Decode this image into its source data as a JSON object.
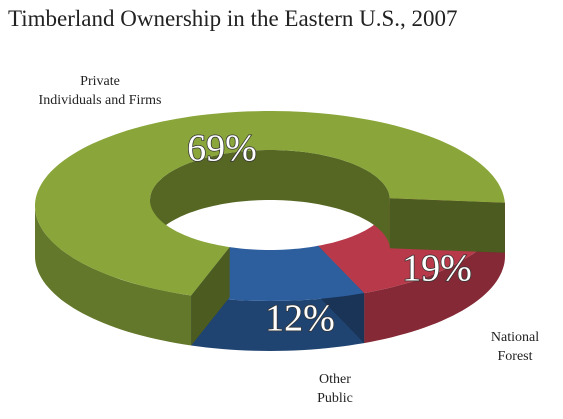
{
  "chart_data": {
    "type": "donut",
    "title": "Timberland Ownership in the Eastern U.S., 2007",
    "categories": [
      "National\nForest",
      "Other\nPublic",
      "Private\nIndividuals and Firms"
    ],
    "values": [
      19,
      12,
      69
    ],
    "value_labels": [
      "19%",
      "12%",
      "69%"
    ],
    "colors": [
      "#b8394a",
      "#2d5e9e",
      "#8aa63a"
    ]
  }
}
